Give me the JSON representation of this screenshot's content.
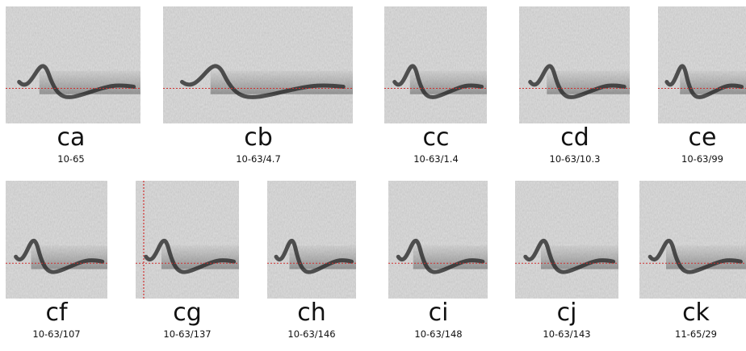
{
  "panels": [
    {
      "label": "ca",
      "code": "10-65"
    },
    {
      "label": "cb",
      "code": "10-63/4.7"
    },
    {
      "label": "cc",
      "code": "10-63/1.4"
    },
    {
      "label": "cd",
      "code": "10-63/10.3"
    },
    {
      "label": "ce",
      "code": "10-63/99"
    },
    {
      "label": "cf",
      "code": "10-63/107"
    },
    {
      "label": "cg",
      "code": "10-63/137"
    },
    {
      "label": "ch",
      "code": "10-63/146"
    },
    {
      "label": "ci",
      "code": "10-63/148"
    },
    {
      "label": "cj",
      "code": "10-63/143"
    },
    {
      "label": "ck",
      "code": "11-65/29"
    }
  ]
}
